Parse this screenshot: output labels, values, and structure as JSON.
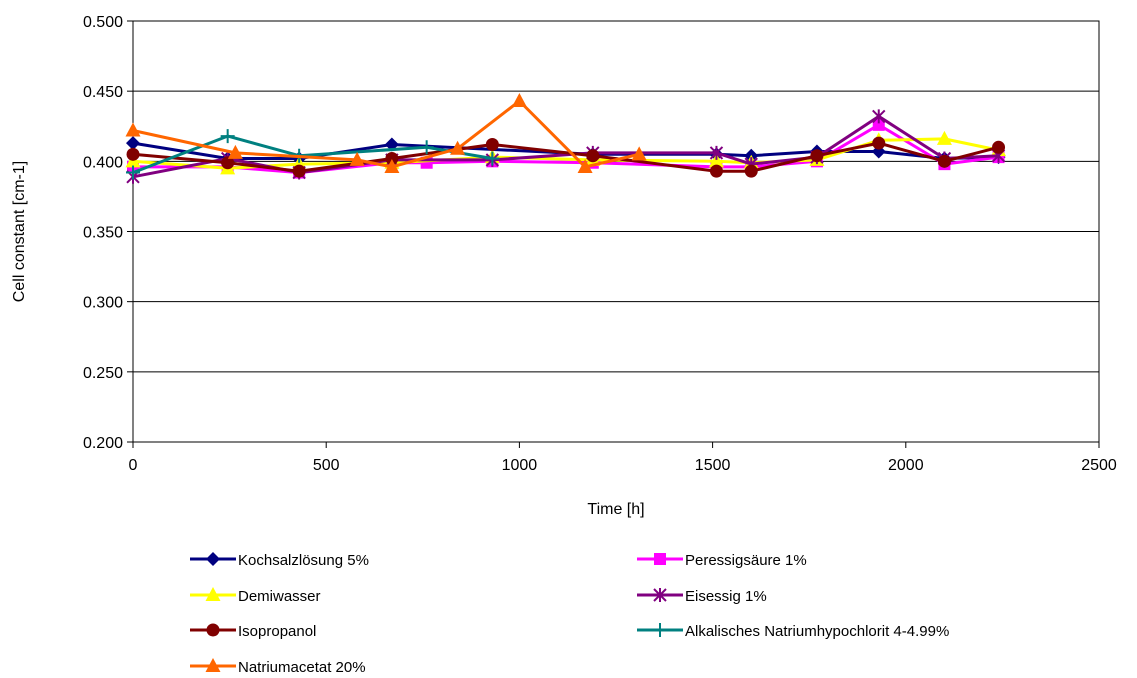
{
  "chart_data": {
    "type": "line",
    "title": "",
    "xlabel": "Time [h]",
    "ylabel": "Cell constant [cm-1]",
    "xlim": [
      0,
      2500
    ],
    "ylim": [
      0.2,
      0.5
    ],
    "x_ticks": [
      "0",
      "500",
      "1000",
      "1500",
      "2000",
      "2500"
    ],
    "y_ticks": [
      "0.200",
      "0.250",
      "0.300",
      "0.350",
      "0.400",
      "0.450",
      "0.500"
    ],
    "grid": "horizontal",
    "legend_position": "bottom",
    "series": [
      {
        "name": "Kochsalzlösung 5%",
        "color": "#000080",
        "marker": "diamond",
        "points": [
          [
            0,
            0.413
          ],
          [
            245,
            0.402
          ],
          [
            430,
            0.402
          ],
          [
            670,
            0.412
          ],
          [
            1190,
            0.405
          ],
          [
            1510,
            0.405
          ],
          [
            1600,
            0.404
          ],
          [
            1770,
            0.407
          ],
          [
            1930,
            0.407
          ],
          [
            2100,
            0.402
          ],
          [
            2240,
            0.403
          ]
        ]
      },
      {
        "name": "Peressigsäure 1%",
        "color": "#ff00ff",
        "marker": "square",
        "points": [
          [
            0,
            0.396
          ],
          [
            245,
            0.396
          ],
          [
            430,
            0.392
          ],
          [
            670,
            0.399
          ],
          [
            760,
            0.399
          ],
          [
            930,
            0.4
          ],
          [
            1190,
            0.399
          ],
          [
            1510,
            0.396
          ],
          [
            1600,
            0.396
          ],
          [
            1770,
            0.4
          ],
          [
            1930,
            0.426
          ],
          [
            2100,
            0.398
          ],
          [
            2240,
            0.403
          ]
        ]
      },
      {
        "name": "Demiwasser",
        "color": "#ffff00",
        "marker": "triangle",
        "points": [
          [
            0,
            0.4
          ],
          [
            245,
            0.395
          ],
          [
            430,
            0.398
          ],
          [
            670,
            0.399
          ],
          [
            930,
            0.403
          ],
          [
            1190,
            0.401
          ],
          [
            1510,
            0.4
          ],
          [
            1600,
            0.399
          ],
          [
            1770,
            0.401
          ],
          [
            1930,
            0.415
          ],
          [
            2100,
            0.416
          ],
          [
            2240,
            0.408
          ]
        ]
      },
      {
        "name": "Eisessig 1%",
        "color": "#800080",
        "marker": "star",
        "points": [
          [
            0,
            0.389
          ],
          [
            245,
            0.402
          ],
          [
            430,
            0.392
          ],
          [
            670,
            0.401
          ],
          [
            930,
            0.401
          ],
          [
            1190,
            0.406
          ],
          [
            1510,
            0.406
          ],
          [
            1600,
            0.398
          ],
          [
            1770,
            0.403
          ],
          [
            1930,
            0.432
          ],
          [
            2100,
            0.402
          ],
          [
            2240,
            0.404
          ]
        ]
      },
      {
        "name": "Isopropanol",
        "color": "#800000",
        "marker": "circle",
        "points": [
          [
            0,
            0.405
          ],
          [
            245,
            0.399
          ],
          [
            430,
            0.393
          ],
          [
            670,
            0.402
          ],
          [
            930,
            0.412
          ],
          [
            1190,
            0.404
          ],
          [
            1510,
            0.393
          ],
          [
            1600,
            0.393
          ],
          [
            1770,
            0.404
          ],
          [
            1930,
            0.413
          ],
          [
            2100,
            0.4
          ],
          [
            2240,
            0.41
          ]
        ]
      },
      {
        "name": "Alkalisches Natriumhypochlorit 4-4.99%",
        "color": "#008080",
        "marker": "plus",
        "points": [
          [
            0,
            0.392
          ],
          [
            245,
            0.418
          ],
          [
            430,
            0.404
          ],
          [
            760,
            0.41
          ],
          [
            930,
            0.402
          ]
        ]
      },
      {
        "name": "Natriumacetat 20%",
        "color": "#ff6600",
        "marker": "triangle",
        "points": [
          [
            0,
            0.422
          ],
          [
            265,
            0.406
          ],
          [
            580,
            0.401
          ],
          [
            670,
            0.396
          ],
          [
            840,
            0.409
          ],
          [
            1000,
            0.443
          ],
          [
            1170,
            0.396
          ],
          [
            1310,
            0.405
          ]
        ]
      }
    ]
  }
}
